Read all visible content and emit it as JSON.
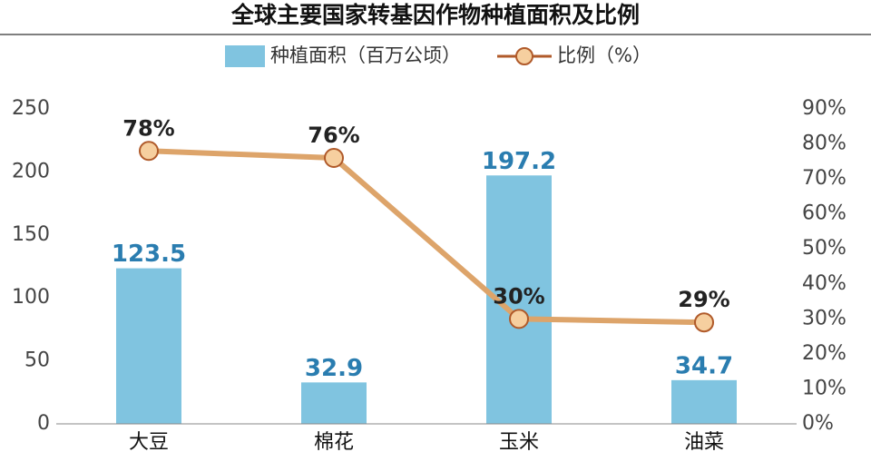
{
  "chart_data": {
    "type": "bar",
    "title": "全球主要国家转基因作物种植面积及比例",
    "categories": [
      "大豆",
      "棉花",
      "玉米",
      "油菜"
    ],
    "series": [
      {
        "name": "种植面积（百万公顷）",
        "color": "#80c4e0",
        "label_color": "#2a7db0",
        "values": [
          123.5,
          32.9,
          197.2,
          34.7
        ]
      },
      {
        "name": "比例（%）",
        "type": "line",
        "axis": "y2",
        "color": "#dda46a",
        "marker_fill": "#f6cf9f",
        "marker_stroke": "#b05a2a",
        "label_color": "#222222",
        "values": [
          78,
          76,
          30,
          29
        ],
        "value_labels": [
          "78%",
          "76%",
          "30%",
          "29%"
        ]
      }
    ],
    "ylim": [
      0,
      250
    ],
    "yticks": [
      0,
      50,
      100,
      150,
      200,
      250
    ],
    "y2lim": [
      0,
      90
    ],
    "y2ticks": [
      {
        "value": 0,
        "label": "0%"
      },
      {
        "value": 10,
        "label": "10%"
      },
      {
        "value": 20,
        "label": "20%"
      },
      {
        "value": 30,
        "label": "30%"
      },
      {
        "value": 40,
        "label": "40%"
      },
      {
        "value": 50,
        "label": "50%"
      },
      {
        "value": 60,
        "label": "60%"
      },
      {
        "value": 70,
        "label": "70%"
      },
      {
        "value": 80,
        "label": "80%"
      },
      {
        "value": 90,
        "label": "90%"
      }
    ],
    "grid": false
  }
}
